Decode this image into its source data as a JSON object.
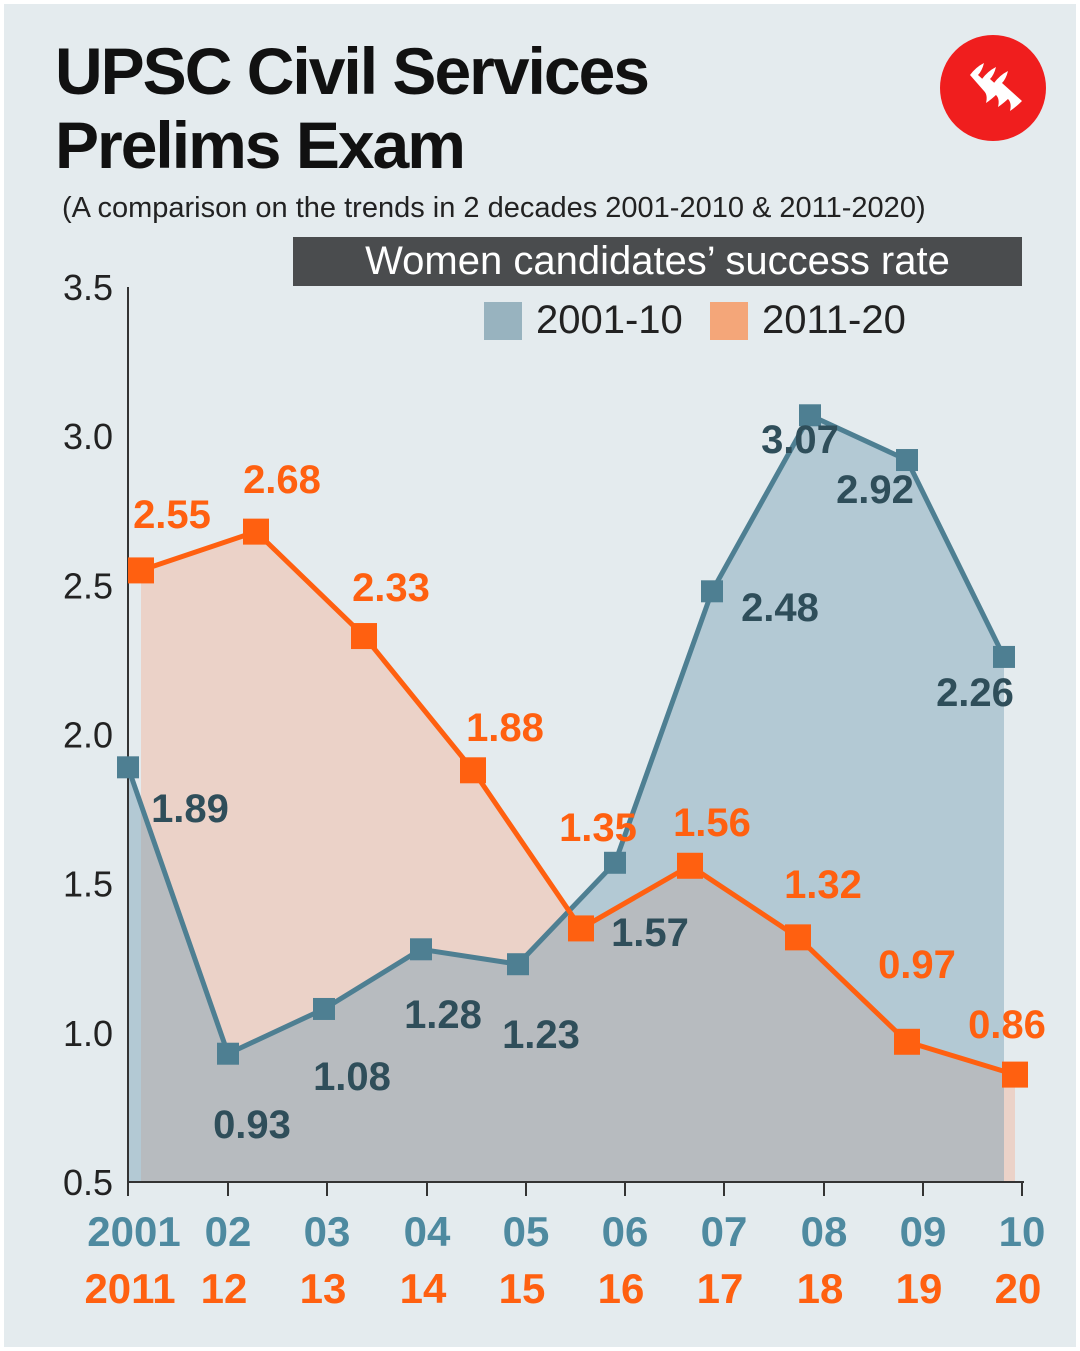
{
  "header": {
    "title_line1": "UPSC Civil Services",
    "title_line2": "Prelims Exam",
    "subtitle": "(A comparison on the trends in 2 decades 2001-2010 & 2011-2020)",
    "banner": "Women candidates’ success rate",
    "logo": "indian-express-logo"
  },
  "colors": {
    "background": "#e4ebee",
    "series_2001_10": "#4e7f92",
    "series_2011_20": "#ff6010",
    "banner": "#4a4c4e",
    "logo": "#f01e1e"
  },
  "chart_data": {
    "type": "line",
    "title": "Women candidates’ success rate",
    "ylim": [
      0.5,
      3.5
    ],
    "y_ticks": [
      "0.5",
      "1.0",
      "1.5",
      "2.0",
      "2.5",
      "3.0",
      "3.5"
    ],
    "x_labels_top": [
      "2001",
      "02",
      "03",
      "04",
      "05",
      "06",
      "07",
      "08",
      "09",
      "10"
    ],
    "x_labels_bottom": [
      "2011",
      "12",
      "13",
      "14",
      "15",
      "16",
      "17",
      "18",
      "19",
      "20"
    ],
    "legend_position": "top-right",
    "grid": false,
    "series": [
      {
        "name": "2001-10",
        "values": [
          1.89,
          0.93,
          1.08,
          1.28,
          1.23,
          1.57,
          2.48,
          3.07,
          2.92,
          2.26
        ],
        "labels": [
          "1.89",
          "0.93",
          "1.08",
          "1.28",
          "1.23",
          "1.57",
          "2.48",
          "3.07",
          "2.92",
          "2.26"
        ]
      },
      {
        "name": "2011-20",
        "values": [
          2.55,
          2.68,
          2.33,
          1.88,
          1.35,
          1.56,
          1.32,
          0.97,
          0.86
        ],
        "labels": [
          "2.55",
          "2.68",
          "2.33",
          "1.88",
          "1.35",
          "1.56",
          "1.32",
          "0.97",
          "0.86"
        ]
      }
    ]
  }
}
